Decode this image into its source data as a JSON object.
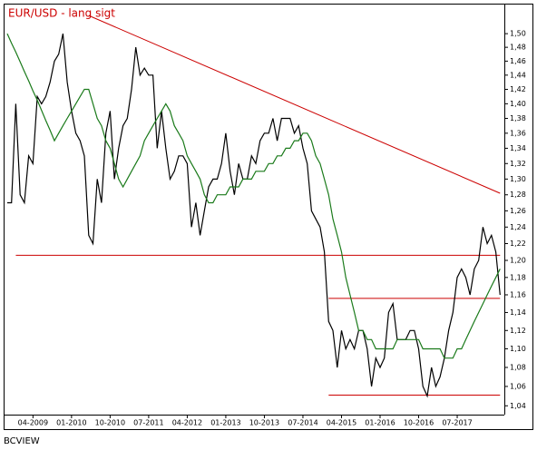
{
  "chart_data": {
    "type": "line",
    "title": "EUR/USD - lang sigt",
    "source": "BCVIEW",
    "x": [
      "10-2008",
      "11-2008",
      "12-2008",
      "01-2009",
      "02-2009",
      "03-2009",
      "04-2009",
      "05-2009",
      "06-2009",
      "07-2009",
      "08-2009",
      "09-2009",
      "10-2009",
      "11-2009",
      "12-2009",
      "01-2010",
      "02-2010",
      "03-2010",
      "04-2010",
      "05-2010",
      "06-2010",
      "07-2010",
      "08-2010",
      "09-2010",
      "10-2010",
      "11-2010",
      "12-2010",
      "01-2011",
      "02-2011",
      "03-2011",
      "04-2011",
      "05-2011",
      "06-2011",
      "07-2011",
      "08-2011",
      "09-2011",
      "10-2011",
      "11-2011",
      "12-2011",
      "01-2012",
      "02-2012",
      "03-2012",
      "04-2012",
      "05-2012",
      "06-2012",
      "07-2012",
      "08-2012",
      "09-2012",
      "10-2012",
      "11-2012",
      "12-2012",
      "01-2013",
      "02-2013",
      "03-2013",
      "04-2013",
      "05-2013",
      "06-2013",
      "07-2013",
      "08-2013",
      "09-2013",
      "10-2013",
      "11-2013",
      "12-2013",
      "01-2014",
      "02-2014",
      "03-2014",
      "04-2014",
      "05-2014",
      "06-2014",
      "07-2014",
      "08-2014",
      "09-2014",
      "10-2014",
      "11-2014",
      "12-2014",
      "01-2015",
      "02-2015",
      "03-2015",
      "04-2015",
      "05-2015",
      "06-2015",
      "07-2015",
      "08-2015",
      "09-2015",
      "10-2015",
      "11-2015",
      "12-2015",
      "01-2016",
      "02-2016",
      "03-2016",
      "04-2016",
      "05-2016",
      "06-2016",
      "07-2016",
      "08-2016",
      "09-2016",
      "10-2016",
      "11-2016",
      "12-2016",
      "01-2017",
      "02-2017",
      "03-2017",
      "04-2017",
      "05-2017",
      "06-2017",
      "07-2017",
      "08-2017",
      "09-2017",
      "10-2017",
      "11-2017",
      "12-2017",
      "01-2018",
      "02-2018",
      "03-2018",
      "04-2018",
      "05-2018"
    ],
    "series": [
      {
        "color": "#000000",
        "values": [
          1.27,
          1.27,
          1.4,
          1.28,
          1.27,
          1.33,
          1.32,
          1.41,
          1.4,
          1.41,
          1.43,
          1.46,
          1.47,
          1.5,
          1.43,
          1.39,
          1.36,
          1.35,
          1.33,
          1.23,
          1.22,
          1.3,
          1.27,
          1.36,
          1.39,
          1.3,
          1.34,
          1.37,
          1.38,
          1.42,
          1.48,
          1.44,
          1.45,
          1.44,
          1.44,
          1.34,
          1.39,
          1.34,
          1.3,
          1.31,
          1.33,
          1.33,
          1.32,
          1.24,
          1.27,
          1.23,
          1.26,
          1.29,
          1.3,
          1.3,
          1.32,
          1.36,
          1.31,
          1.28,
          1.32,
          1.3,
          1.3,
          1.33,
          1.32,
          1.35,
          1.36,
          1.36,
          1.38,
          1.35,
          1.38,
          1.38,
          1.38,
          1.36,
          1.37,
          1.34,
          1.32,
          1.26,
          1.25,
          1.24,
          1.21,
          1.13,
          1.12,
          1.08,
          1.12,
          1.1,
          1.11,
          1.1,
          1.12,
          1.12,
          1.1,
          1.06,
          1.09,
          1.08,
          1.09,
          1.14,
          1.15,
          1.11,
          1.11,
          1.11,
          1.12,
          1.12,
          1.1,
          1.06,
          1.05,
          1.08,
          1.06,
          1.07,
          1.09,
          1.12,
          1.14,
          1.18,
          1.19,
          1.18,
          1.16,
          1.19,
          1.2,
          1.24,
          1.22,
          1.23,
          1.21,
          1.16
        ]
      },
      {
        "color": "#1a7a1a",
        "values": [
          1.5,
          1.486,
          1.473,
          1.459,
          1.445,
          1.432,
          1.418,
          1.405,
          1.391,
          1.377,
          1.364,
          1.35,
          1.36,
          1.37,
          1.38,
          1.39,
          1.4,
          1.41,
          1.42,
          1.42,
          1.4,
          1.38,
          1.37,
          1.35,
          1.34,
          1.32,
          1.3,
          1.29,
          1.3,
          1.31,
          1.32,
          1.33,
          1.35,
          1.36,
          1.37,
          1.38,
          1.39,
          1.4,
          1.39,
          1.37,
          1.36,
          1.35,
          1.33,
          1.32,
          1.31,
          1.3,
          1.28,
          1.27,
          1.27,
          1.28,
          1.28,
          1.28,
          1.29,
          1.29,
          1.29,
          1.3,
          1.3,
          1.3,
          1.31,
          1.31,
          1.31,
          1.32,
          1.32,
          1.33,
          1.33,
          1.34,
          1.34,
          1.35,
          1.35,
          1.36,
          1.36,
          1.35,
          1.33,
          1.32,
          1.3,
          1.28,
          1.25,
          1.23,
          1.21,
          1.18,
          1.16,
          1.14,
          1.12,
          1.12,
          1.11,
          1.11,
          1.1,
          1.1,
          1.1,
          1.1,
          1.1,
          1.11,
          1.11,
          1.11,
          1.11,
          1.11,
          1.11,
          1.1,
          1.1,
          1.1,
          1.1,
          1.1,
          1.09,
          1.09,
          1.09,
          1.1,
          1.1,
          1.11,
          1.12,
          1.13,
          1.14,
          1.15,
          1.16,
          1.17,
          1.18,
          1.19
        ]
      }
    ],
    "lines": [
      {
        "color": "#cc0000",
        "x": [
          "05-2010",
          "05-2018"
        ],
        "y": [
          1.527,
          1.282
        ]
      },
      {
        "color": "#cc0000",
        "x": [
          "12-2008",
          "05-2018"
        ],
        "y": [
          1.206,
          1.206
        ]
      },
      {
        "color": "#cc0000",
        "x": [
          "01-2015",
          "05-2018"
        ],
        "y": [
          1.156,
          1.156
        ]
      },
      {
        "color": "#cc0000",
        "x": [
          "01-2015",
          "05-2018"
        ],
        "y": [
          1.051,
          1.051
        ]
      }
    ],
    "xlim": [
      "10-2008",
      "06-2018"
    ],
    "xticks": [
      "04-2009",
      "01-2010",
      "10-2010",
      "07-2011",
      "04-2012",
      "01-2013",
      "10-2013",
      "07-2014",
      "04-2015",
      "01-2016",
      "10-2016",
      "07-2017"
    ],
    "ylim": [
      1.031,
      1.545
    ],
    "log_y": true,
    "yticks": [
      {
        "value": 1.04,
        "label": "1,04"
      },
      {
        "value": 1.06,
        "label": "1,06"
      },
      {
        "value": 1.08,
        "label": "1,08"
      },
      {
        "value": 1.1,
        "label": "1,10"
      },
      {
        "value": 1.12,
        "label": "1,12"
      },
      {
        "value": 1.14,
        "label": "1,14"
      },
      {
        "value": 1.16,
        "label": "1,16"
      },
      {
        "value": 1.18,
        "label": "1,18"
      },
      {
        "value": 1.2,
        "label": "1,20"
      },
      {
        "value": 1.22,
        "label": "1,22"
      },
      {
        "value": 1.24,
        "label": "1,24"
      },
      {
        "value": 1.26,
        "label": "1,26"
      },
      {
        "value": 1.28,
        "label": "1,28"
      },
      {
        "value": 1.3,
        "label": "1,30"
      },
      {
        "value": 1.32,
        "label": "1,32"
      },
      {
        "value": 1.34,
        "label": "1,34"
      },
      {
        "value": 1.36,
        "label": "1,36"
      },
      {
        "value": 1.38,
        "label": "1,38"
      },
      {
        "value": 1.4,
        "label": "1,40"
      },
      {
        "value": 1.42,
        "label": "1,42"
      },
      {
        "value": 1.44,
        "label": "1,44"
      },
      {
        "value": 1.46,
        "label": "1,46"
      },
      {
        "value": 1.48,
        "label": "1,48"
      },
      {
        "value": 1.5,
        "label": "1,50"
      }
    ],
    "grid": false
  }
}
